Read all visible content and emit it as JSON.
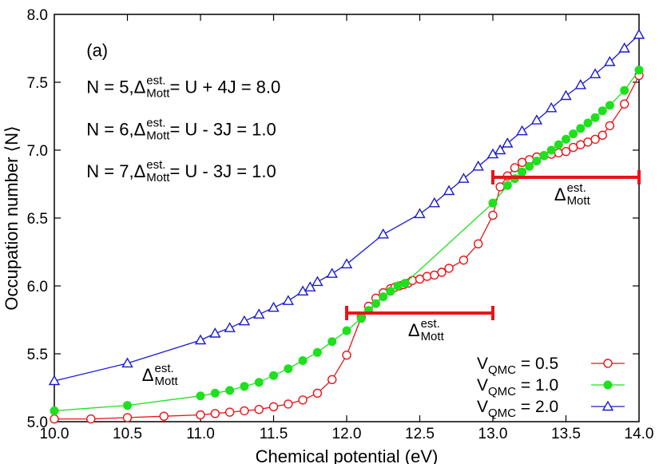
{
  "chart_data": {
    "type": "line",
    "panel_label": "(a)",
    "xlabel": "Chemical potential (eV)",
    "ylabel": "Occupation number ⟨N⟩",
    "xlim": [
      10.0,
      14.0
    ],
    "ylim": [
      5.0,
      8.0
    ],
    "x_ticks": [
      "10.0",
      "10.5",
      "11.0",
      "11.5",
      "12.0",
      "12.5",
      "13.0",
      "13.5",
      "14.0"
    ],
    "y_ticks": [
      "5.0",
      "5.5",
      "6.0",
      "6.5",
      "7.0",
      "7.5",
      "8.0"
    ],
    "grid": false,
    "legend_position": "bottom-right",
    "series": [
      {
        "name": "V_QMC = 0.5",
        "legend_main": "V",
        "legend_sub": "QMC",
        "legend_value": " = 0.5",
        "color": "#e8141a",
        "marker": "open-circle",
        "x": [
          10.0,
          10.25,
          10.5,
          10.75,
          11.0,
          11.1,
          11.2,
          11.3,
          11.4,
          11.5,
          11.6,
          11.7,
          11.8,
          11.9,
          12.0,
          12.1,
          12.15,
          12.2,
          12.25,
          12.3,
          12.33,
          12.36,
          12.39,
          12.42,
          12.45,
          12.5,
          12.55,
          12.6,
          12.65,
          12.7,
          12.8,
          12.9,
          13.0,
          13.05,
          13.1,
          13.15,
          13.2,
          13.25,
          13.3,
          13.35,
          13.4,
          13.45,
          13.5,
          13.55,
          13.6,
          13.65,
          13.7,
          13.75,
          13.8,
          13.9,
          14.0
        ],
        "y": [
          5.02,
          5.02,
          5.03,
          5.04,
          5.05,
          5.06,
          5.07,
          5.08,
          5.09,
          5.11,
          5.13,
          5.16,
          5.21,
          5.31,
          5.49,
          5.77,
          5.85,
          5.91,
          5.95,
          5.98,
          5.99,
          6.0,
          6.01,
          6.02,
          6.04,
          6.05,
          6.07,
          6.08,
          6.1,
          6.13,
          6.19,
          6.31,
          6.52,
          6.73,
          6.81,
          6.87,
          6.91,
          6.93,
          6.95,
          6.96,
          6.97,
          6.98,
          6.99,
          7.02,
          7.04,
          7.06,
          7.08,
          7.11,
          7.18,
          7.34,
          7.55
        ]
      },
      {
        "name": "V_QMC = 1.0",
        "legend_main": "V",
        "legend_sub": "QMC",
        "legend_value": " = 1.0",
        "color": "#1ee01e",
        "marker": "filled-circle",
        "x": [
          10.0,
          10.5,
          11.0,
          11.1,
          11.2,
          11.3,
          11.4,
          11.5,
          11.6,
          11.7,
          11.8,
          11.9,
          12.0,
          12.1,
          12.15,
          12.2,
          12.25,
          12.3,
          12.35,
          12.4,
          13.0,
          13.1,
          13.15,
          13.2,
          13.25,
          13.3,
          13.35,
          13.4,
          13.45,
          13.5,
          13.55,
          13.6,
          13.65,
          13.7,
          13.75,
          13.8,
          13.9,
          14.0
        ],
        "y": [
          5.08,
          5.12,
          5.19,
          5.21,
          5.23,
          5.26,
          5.29,
          5.34,
          5.39,
          5.45,
          5.51,
          5.59,
          5.67,
          5.76,
          5.82,
          5.87,
          5.92,
          5.96,
          6.0,
          6.02,
          6.61,
          6.74,
          6.79,
          6.84,
          6.88,
          6.92,
          6.96,
          7.0,
          7.04,
          7.08,
          7.12,
          7.16,
          7.2,
          7.24,
          7.29,
          7.33,
          7.44,
          7.59
        ]
      },
      {
        "name": "V_QMC = 2.0",
        "legend_main": "V",
        "legend_sub": "QMC",
        "legend_value": " = 2.0",
        "color": "#1a1ad0",
        "marker": "open-triangle",
        "x": [
          10.0,
          10.5,
          11.0,
          11.1,
          11.2,
          11.3,
          11.4,
          11.5,
          11.6,
          11.7,
          11.75,
          11.8,
          11.9,
          12.0,
          12.25,
          12.5,
          12.6,
          12.7,
          12.8,
          12.9,
          13.0,
          13.05,
          13.1,
          13.2,
          13.3,
          13.4,
          13.5,
          13.6,
          13.7,
          13.8,
          13.9,
          14.0
        ],
        "y": [
          5.3,
          5.43,
          5.6,
          5.65,
          5.69,
          5.74,
          5.79,
          5.84,
          5.89,
          5.96,
          5.99,
          6.03,
          6.09,
          6.16,
          6.38,
          6.53,
          6.61,
          6.7,
          6.79,
          6.88,
          6.97,
          7.0,
          7.05,
          7.14,
          7.22,
          7.31,
          7.4,
          7.48,
          7.56,
          7.65,
          7.75,
          7.85
        ]
      }
    ],
    "gap_bars": [
      {
        "x1": 12.0,
        "x2": 13.0,
        "y": 5.8,
        "color": "#e8141a",
        "label_main": "Δ",
        "label_sup": "est.",
        "label_sub": "Mott",
        "label_x": 12.42,
        "label_y": 5.63
      },
      {
        "x1": 13.0,
        "x2": 14.0,
        "y": 6.8,
        "color": "#e8141a",
        "label_main": "Δ",
        "label_sup": "est.",
        "label_sub": "Mott",
        "label_x": 13.42,
        "label_y": 6.63
      }
    ],
    "stray_label": {
      "main": "Δ",
      "sup": "est.",
      "sub": "Mott",
      "x": 10.6,
      "y": 5.3
    },
    "annotations": [
      {
        "lead": "N = 5, ",
        "delta": "Δ",
        "sup": "est.",
        "sub": "Mott",
        "tail": " = U + 4J = 8.0",
        "x": 10.22,
        "y": 7.42
      },
      {
        "lead": "N = 6, ",
        "delta": "Δ",
        "sup": "est.",
        "sub": "Mott",
        "tail": " = U - 3J = 1.0",
        "x": 10.22,
        "y": 7.11
      },
      {
        "lead": "N = 7, ",
        "delta": "Δ",
        "sup": "est.",
        "sub": "Mott",
        "tail": " = U - 3J = 1.0",
        "x": 10.22,
        "y": 6.8
      }
    ]
  }
}
